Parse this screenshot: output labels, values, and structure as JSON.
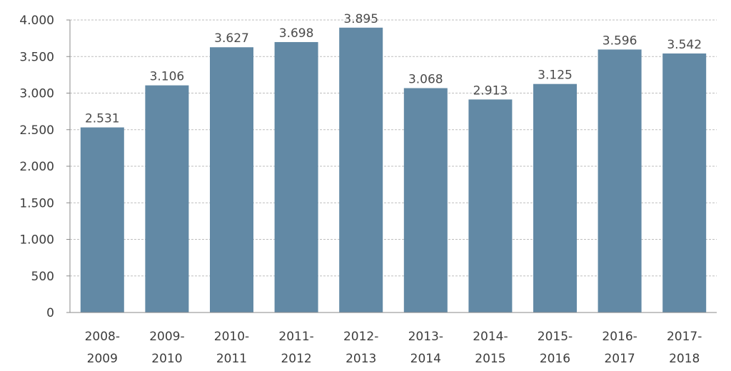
{
  "chart_data": {
    "type": "bar",
    "categories": [
      [
        "2008-",
        "2009"
      ],
      [
        "2009-",
        "2010"
      ],
      [
        "2010-",
        "2011"
      ],
      [
        "2011-",
        "2012"
      ],
      [
        "2012-",
        "2013"
      ],
      [
        "2013-",
        "2014"
      ],
      [
        "2014-",
        "2015"
      ],
      [
        "2015-",
        "2016"
      ],
      [
        "2016-",
        "2017"
      ],
      [
        "2017-",
        "2018"
      ]
    ],
    "values": [
      2531,
      3106,
      3627,
      3698,
      3895,
      3068,
      2913,
      3125,
      3596,
      3542
    ],
    "value_labels": [
      "2.531",
      "3.106",
      "3.627",
      "3.698",
      "3.895",
      "3.068",
      "2.913",
      "3.125",
      "3.596",
      "3.542"
    ],
    "yticks": [
      0,
      500,
      1000,
      1500,
      2000,
      2500,
      3000,
      3500,
      4000
    ],
    "ytick_labels": [
      "0",
      "500",
      "1.000",
      "1.500",
      "2.000",
      "2.500",
      "3.000",
      "3.500",
      "4.000"
    ],
    "ylim": [
      0,
      4000
    ],
    "title": "",
    "xlabel": "",
    "ylabel": "",
    "grid": true,
    "bar_color": "#6289a5",
    "grid_color": "#bdbdbd"
  }
}
